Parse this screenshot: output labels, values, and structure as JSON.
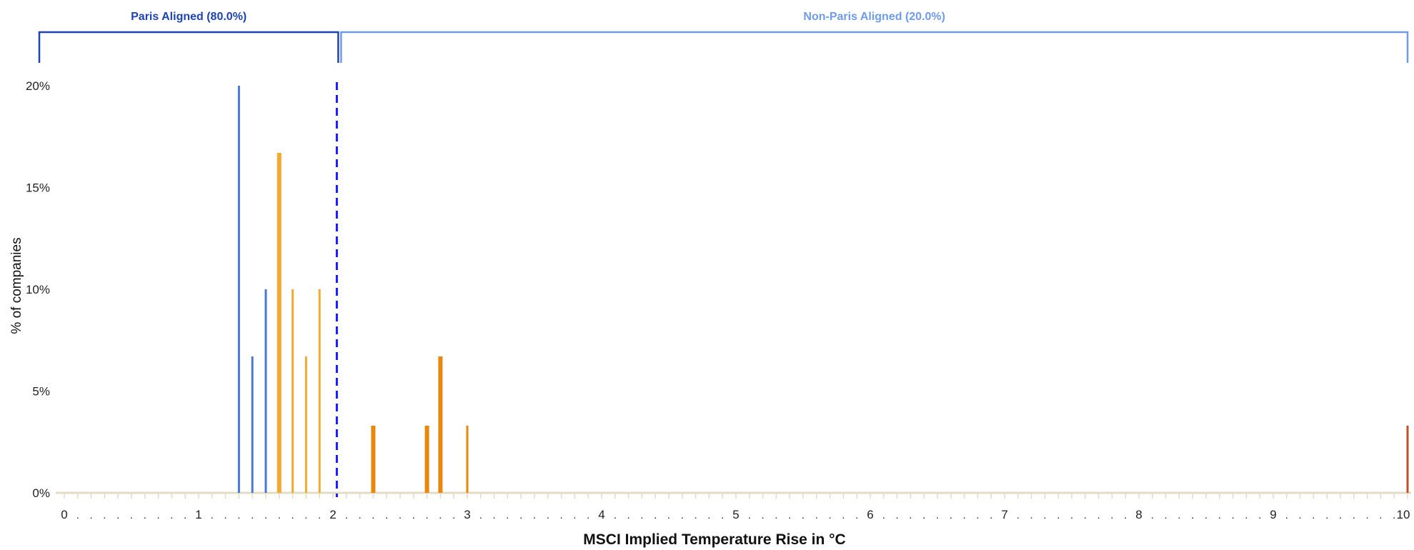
{
  "chart_data": {
    "type": "bar",
    "xlabel": "MSCI Implied Temperature Rise in °C",
    "ylabel": "% of companies",
    "xlim": [
      0,
      10
    ],
    "ylim": [
      0,
      20
    ],
    "x_ticks": [
      0,
      1,
      2,
      3,
      4,
      5,
      6,
      7,
      8,
      9,
      10
    ],
    "x_tick_labels": [
      "0",
      "1",
      "2",
      "3",
      "4",
      "5",
      "6",
      "7",
      "8",
      "9",
      "10"
    ],
    "y_ticks": [
      0,
      5,
      10,
      15,
      20
    ],
    "y_tick_labels": [
      "0%",
      "5%",
      "10%",
      "15%",
      "20%"
    ],
    "threshold": {
      "x": 2.05,
      "style": "dashed",
      "color": "#1a1aff"
    },
    "brackets": [
      {
        "label": "Paris Aligned (80.0%)",
        "from": 0,
        "to": 2.05,
        "color": "#1e44b0"
      },
      {
        "label": "Non-Paris Aligned (20.0%)",
        "from": 2.05,
        "to": 10,
        "color": "#6f9be8"
      }
    ],
    "bars": [
      {
        "x": 1.3,
        "value": 20.0,
        "color": "#4a78d6",
        "thick": false
      },
      {
        "x": 1.4,
        "value": 6.7,
        "color": "#4a78d6",
        "thick": false
      },
      {
        "x": 1.5,
        "value": 10.0,
        "color": "#4a78d6",
        "thick": false
      },
      {
        "x": 1.6,
        "value": 16.7,
        "color": "#f2aa30",
        "thick": true
      },
      {
        "x": 1.7,
        "value": 10.0,
        "color": "#f2aa30",
        "thick": false
      },
      {
        "x": 1.8,
        "value": 6.7,
        "color": "#f2aa30",
        "thick": false
      },
      {
        "x": 1.9,
        "value": 10.0,
        "color": "#f2aa30",
        "thick": false
      },
      {
        "x": 2.3,
        "value": 3.3,
        "color": "#e8870d",
        "thick": true
      },
      {
        "x": 2.7,
        "value": 3.3,
        "color": "#e8870d",
        "thick": true
      },
      {
        "x": 2.8,
        "value": 6.7,
        "color": "#e8870d",
        "thick": true
      },
      {
        "x": 3.0,
        "value": 3.3,
        "color": "#e8870d",
        "thick": false
      },
      {
        "x": 10.0,
        "value": 3.3,
        "color": "#c0502a",
        "thick": false
      }
    ]
  }
}
